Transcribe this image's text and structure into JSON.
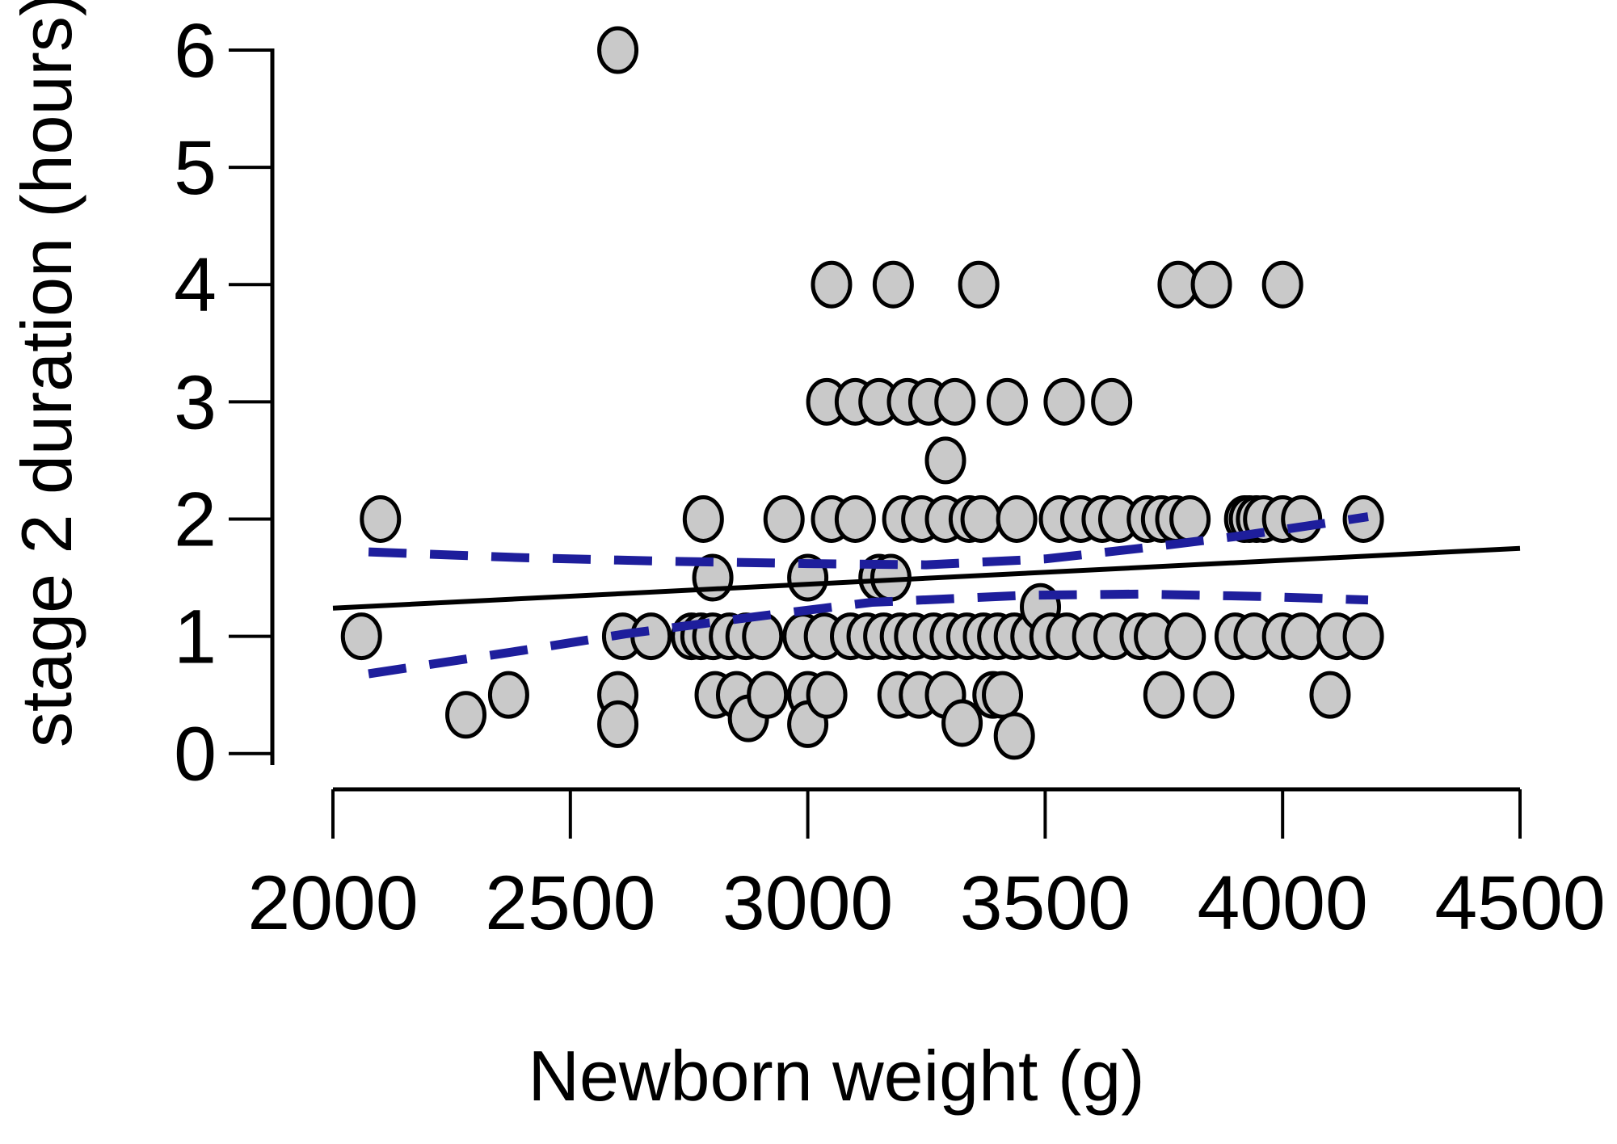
{
  "chart_data": {
    "type": "scatter",
    "title": "",
    "xlabel": "Newborn weight (g)",
    "ylabel": "stage 2 duration (hours)",
    "x_ticks": [
      2000,
      2500,
      3000,
      3500,
      4000,
      4500
    ],
    "y_ticks": [
      0,
      1,
      2,
      3,
      4,
      5,
      6
    ],
    "xlim": [
      2000,
      4500
    ],
    "ylim": [
      0,
      6
    ],
    "grid": false,
    "legend": "none",
    "point_style": {
      "fill": "#c9c9c9",
      "stroke": "#000000"
    },
    "fit_line": {
      "name": "linear-fit",
      "color": "#000000",
      "x": [
        2000,
        4500
      ],
      "y": [
        1.24,
        1.75
      ]
    },
    "ci_upper": {
      "name": "upper-confidence-band",
      "color": "#1e1e9c",
      "dashed": true,
      "points": [
        [
          2075,
          1.72
        ],
        [
          2400,
          1.67
        ],
        [
          2700,
          1.64
        ],
        [
          3000,
          1.62
        ],
        [
          3250,
          1.61
        ],
        [
          3500,
          1.66
        ],
        [
          3700,
          1.75
        ],
        [
          3900,
          1.85
        ],
        [
          4050,
          1.94
        ],
        [
          4180,
          2.02
        ]
      ]
    },
    "ci_lower": {
      "name": "lower-confidence-band",
      "color": "#1e1e9c",
      "dashed": true,
      "points": [
        [
          2075,
          0.68
        ],
        [
          2400,
          0.88
        ],
        [
          2615,
          1.02
        ],
        [
          2895,
          1.17
        ],
        [
          3135,
          1.29
        ],
        [
          3460,
          1.35
        ],
        [
          3700,
          1.36
        ],
        [
          3950,
          1.34
        ],
        [
          4180,
          1.31
        ]
      ]
    },
    "points": [
      [
        2600,
        6
      ],
      [
        3050,
        4
      ],
      [
        3180,
        4
      ],
      [
        3360,
        4
      ],
      [
        3780,
        4
      ],
      [
        3850,
        4
      ],
      [
        4000,
        4
      ],
      [
        3040,
        3
      ],
      [
        3100,
        3
      ],
      [
        3150,
        3
      ],
      [
        3210,
        3
      ],
      [
        3255,
        3
      ],
      [
        3310,
        3
      ],
      [
        3420,
        3
      ],
      [
        3540,
        3
      ],
      [
        3640,
        3
      ],
      [
        3290,
        2.5
      ],
      [
        2100,
        2
      ],
      [
        2780,
        2
      ],
      [
        2950,
        2
      ],
      [
        3050,
        2
      ],
      [
        3100,
        2
      ],
      [
        3200,
        2
      ],
      [
        3240,
        2
      ],
      [
        3290,
        2
      ],
      [
        3340,
        2
      ],
      [
        3365,
        2
      ],
      [
        3440,
        2
      ],
      [
        3530,
        2
      ],
      [
        3575,
        2
      ],
      [
        3620,
        2
      ],
      [
        3655,
        2
      ],
      [
        3715,
        2
      ],
      [
        3745,
        2
      ],
      [
        3775,
        2
      ],
      [
        3805,
        2
      ],
      [
        3920,
        2
      ],
      [
        3930,
        2
      ],
      [
        3945,
        2
      ],
      [
        3960,
        2
      ],
      [
        4000,
        2
      ],
      [
        4040,
        2
      ],
      [
        4170,
        2
      ],
      [
        2800,
        1.5
      ],
      [
        3000,
        1.5
      ],
      [
        3150,
        1.5
      ],
      [
        3175,
        1.5
      ],
      [
        3490,
        1.25
      ],
      [
        2060,
        1
      ],
      [
        2610,
        1
      ],
      [
        2670,
        1
      ],
      [
        2755,
        1
      ],
      [
        2775,
        1
      ],
      [
        2800,
        1
      ],
      [
        2835,
        1
      ],
      [
        2870,
        1
      ],
      [
        2905,
        1
      ],
      [
        2990,
        1
      ],
      [
        3035,
        1
      ],
      [
        3090,
        1
      ],
      [
        3125,
        1
      ],
      [
        3160,
        1
      ],
      [
        3195,
        1
      ],
      [
        3225,
        1
      ],
      [
        3265,
        1
      ],
      [
        3300,
        1
      ],
      [
        3335,
        1
      ],
      [
        3370,
        1
      ],
      [
        3400,
        1
      ],
      [
        3435,
        1
      ],
      [
        3470,
        1
      ],
      [
        3510,
        1
      ],
      [
        3545,
        1
      ],
      [
        3600,
        1
      ],
      [
        3645,
        1
      ],
      [
        3700,
        1
      ],
      [
        3730,
        1
      ],
      [
        3795,
        1
      ],
      [
        3900,
        1
      ],
      [
        3940,
        1
      ],
      [
        4000,
        1
      ],
      [
        4040,
        1
      ],
      [
        4115,
        1
      ],
      [
        4170,
        1
      ],
      [
        2370,
        0.5
      ],
      [
        2600,
        0.5
      ],
      [
        2805,
        0.5
      ],
      [
        2850,
        0.5
      ],
      [
        2915,
        0.5
      ],
      [
        3000,
        0.5
      ],
      [
        3040,
        0.5
      ],
      [
        3190,
        0.5
      ],
      [
        3235,
        0.5
      ],
      [
        3290,
        0.5
      ],
      [
        3390,
        0.5
      ],
      [
        3410,
        0.5
      ],
      [
        3750,
        0.5
      ],
      [
        3855,
        0.5
      ],
      [
        4100,
        0.5
      ],
      [
        2280,
        0.33
      ],
      [
        2875,
        0.3
      ],
      [
        2600,
        0.25
      ],
      [
        3000,
        0.25
      ],
      [
        3325,
        0.26
      ],
      [
        3435,
        0.15
      ]
    ]
  }
}
